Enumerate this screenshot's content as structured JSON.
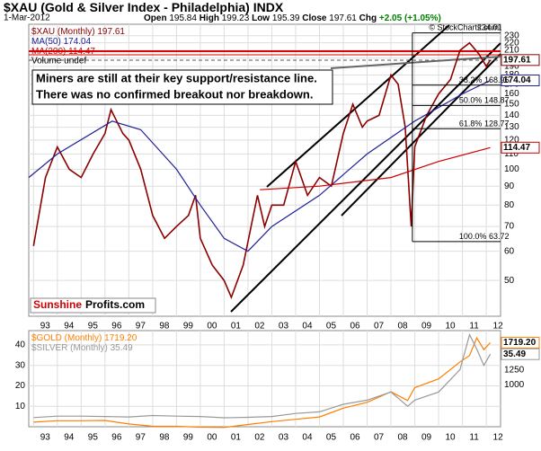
{
  "chart_data": [
    {
      "type": "line",
      "title": "$XAU (Gold & Silver Index - Philadelphia) INDX",
      "date": "1-Mar-2012",
      "header_stats": [
        {
          "label": "Open",
          "value": 195.84
        },
        {
          "label": "High",
          "value": 199.23
        },
        {
          "label": "Low",
          "value": 195.39
        },
        {
          "label": "Close",
          "value": 197.61
        }
      ],
      "change_label": "Chg",
      "change": "+2.05 (+1.05%)",
      "annotation": [
        "Miners are still at their key support/resistance line.",
        "There was no confirmed breakout nor breakdown."
      ],
      "logo": [
        "Sunshine",
        "Profits.com"
      ],
      "credit": "© StockCharts.com",
      "log_scale": true,
      "xlim": [
        1992.8,
        2012.6
      ],
      "xticks": [
        {
          "value": 1993,
          "label": "93"
        },
        {
          "value": 1994,
          "label": "94"
        },
        {
          "value": 1995,
          "label": "95"
        },
        {
          "value": 1996,
          "label": "96"
        },
        {
          "value": 1997,
          "label": "97"
        },
        {
          "value": 1998,
          "label": "98"
        },
        {
          "value": 1999,
          "label": "99"
        },
        {
          "value": 2000,
          "label": "00"
        },
        {
          "value": 2001,
          "label": "01"
        },
        {
          "value": 2002,
          "label": "02"
        },
        {
          "value": 2003,
          "label": "03"
        },
        {
          "value": 2004,
          "label": "04"
        },
        {
          "value": 2005,
          "label": "05"
        },
        {
          "value": 2006,
          "label": "06"
        },
        {
          "value": 2007,
          "label": "07"
        },
        {
          "value": 2008,
          "label": "08"
        },
        {
          "value": 2009,
          "label": "09"
        },
        {
          "value": 2010,
          "label": "10"
        },
        {
          "value": 2011,
          "label": "11"
        },
        {
          "value": 2012,
          "label": "12"
        }
      ],
      "ylim": [
        40,
        247
      ],
      "yticks": [
        50,
        60,
        70,
        80,
        90,
        100,
        110,
        120,
        130,
        140,
        150,
        160,
        170,
        180,
        190,
        200,
        210,
        220,
        230
      ],
      "grid": true,
      "series": [
        {
          "name": "$XAU (Monthly)",
          "color": "#8b0000",
          "x": [
            1993.0,
            1993.5,
            1994.0,
            1994.5,
            1995.0,
            1995.5,
            1996.0,
            1996.25,
            1996.75,
            1997.0,
            1997.5,
            1998.0,
            1998.5,
            1999.0,
            1999.5,
            1999.8,
            2000.0,
            2000.5,
            2001.0,
            2001.3,
            2001.8,
            2002.4,
            2002.7,
            2003.0,
            2003.5,
            2004.0,
            2004.5,
            2005.0,
            2005.5,
            2006.0,
            2006.4,
            2006.8,
            2007.0,
            2007.5,
            2008.0,
            2008.3,
            2008.6,
            2008.85,
            2009.0,
            2009.5,
            2010.0,
            2010.5,
            2010.9,
            2011.3,
            2011.7,
            2012.0,
            2012.17
          ],
          "values": [
            62,
            95,
            115,
            100,
            95,
            110,
            125,
            145,
            125,
            120,
            100,
            75,
            65,
            70,
            75,
            85,
            65,
            55,
            50,
            45,
            55,
            85,
            70,
            80,
            80,
            105,
            85,
            95,
            90,
            125,
            150,
            130,
            135,
            140,
            180,
            170,
            130,
            70,
            115,
            140,
            160,
            175,
            210,
            220,
            205,
            190,
            197.61
          ]
        },
        {
          "name": "MA(50)",
          "color": "#20209a",
          "x": [
            1992.8,
            1994.0,
            1996.3,
            1997.5,
            1999.0,
            2000.0,
            2001.0,
            2002.0,
            2003.0,
            2005.0,
            2007.0,
            2009.0,
            2011.0,
            2012.17
          ],
          "values": [
            95,
            110,
            135,
            128,
            100,
            80,
            65,
            60,
            70,
            85,
            110,
            135,
            160,
            174.04
          ]
        },
        {
          "name": "MA(200)",
          "color": "#cc0000",
          "x": [
            2002.5,
            2005.0,
            2008.0,
            2010.0,
            2012.17
          ],
          "values": [
            88,
            90,
            95,
            105,
            114.47
          ]
        }
      ],
      "volume_label": "Volume undef",
      "fib_levels": [
        {
          "value": 234.01
        },
        {
          "pct": "38.2%",
          "value": 168.96
        },
        {
          "pct": "50.0%",
          "value": 148.87
        },
        {
          "pct": "61.8%",
          "value": 128.77
        },
        {
          "pct": "100.0%",
          "value": 63.72
        }
      ]
    },
    {
      "type": "line",
      "xlim": [
        1992.8,
        2012.6
      ],
      "xticks": [
        {
          "value": 1993,
          "label": "93"
        },
        {
          "value": 1994,
          "label": "94"
        },
        {
          "value": 1995,
          "label": "95"
        },
        {
          "value": 1996,
          "label": "96"
        },
        {
          "value": 1997,
          "label": "97"
        },
        {
          "value": 1998,
          "label": "98"
        },
        {
          "value": 1999,
          "label": "99"
        },
        {
          "value": 2000,
          "label": "00"
        },
        {
          "value": 2001,
          "label": "01"
        },
        {
          "value": 2002,
          "label": "02"
        },
        {
          "value": 2003,
          "label": "03"
        },
        {
          "value": 2004,
          "label": "04"
        },
        {
          "value": 2005,
          "label": "05"
        },
        {
          "value": 2006,
          "label": "06"
        },
        {
          "value": 2007,
          "label": "07"
        },
        {
          "value": 2008,
          "label": "08"
        },
        {
          "value": 2009,
          "label": "09"
        },
        {
          "value": 2010,
          "label": "10"
        },
        {
          "value": 2011,
          "label": "11"
        },
        {
          "value": 2012,
          "label": "12"
        }
      ],
      "ylim": [
        0,
        47
      ],
      "yticks": [
        10,
        20,
        30,
        40
      ],
      "y2lim": [
        282,
        1925
      ],
      "y2ticks": [
        1000,
        1250,
        1500,
        1750
      ],
      "grid": true,
      "series": [
        {
          "name": "$GOLD (Monthly)",
          "color": "#ff7f00",
          "axis": "y2",
          "x": [
            1993,
            1994,
            1995,
            1996,
            1997,
            1998,
            1999,
            2000,
            2001,
            2002,
            2003,
            2004,
            2005,
            2006,
            2007,
            2008,
            2008.7,
            2009,
            2010,
            2010.9,
            2011.3,
            2011.6,
            2011.9,
            2012.17
          ],
          "values": [
            360,
            385,
            385,
            390,
            330,
            290,
            290,
            275,
            270,
            320,
            370,
            410,
            450,
            600,
            700,
            880,
            730,
            950,
            1100,
            1390,
            1500,
            1800,
            1600,
            1719.2
          ],
          "value_labels": [
            null,
            null,
            null,
            null,
            null,
            null,
            null,
            null,
            null,
            null,
            null,
            null,
            null,
            null,
            null,
            null,
            null,
            null,
            null,
            null,
            null,
            null,
            null,
            "1719.20"
          ]
        },
        {
          "name": "$SILVER (Monthly)",
          "color": "#999999",
          "x": [
            1993,
            1994,
            1995,
            1996,
            1997,
            1998,
            1999,
            2000,
            2001,
            2002,
            2003,
            2004,
            2005,
            2006,
            2007,
            2008,
            2008.7,
            2009,
            2010,
            2010.9,
            2011.3,
            2011.6,
            2011.9,
            2012.17
          ],
          "values": [
            4.5,
            5.2,
            5.2,
            5,
            4.8,
            5.5,
            5.2,
            5,
            4.4,
            4.6,
            5,
            6.5,
            7.3,
            11,
            13,
            17,
            10,
            13,
            17,
            28,
            45,
            38,
            30,
            35.49
          ]
        }
      ]
    }
  ]
}
